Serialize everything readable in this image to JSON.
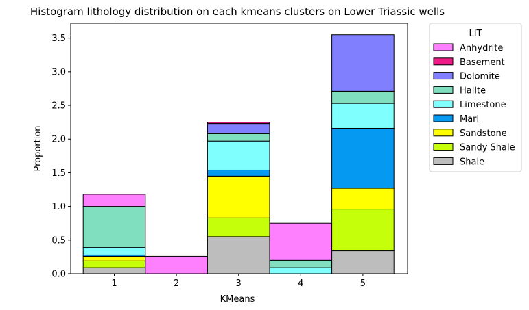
{
  "chart_data": {
    "type": "bar",
    "stacked": true,
    "title": "Histogram lithology distribution on each kmeans clusters on Lower Triassic wells",
    "xlabel": "KMeans",
    "ylabel": "Proportion",
    "ylim": [
      0,
      3.72
    ],
    "yticks": [
      0.0,
      0.5,
      1.0,
      1.5,
      2.0,
      2.5,
      3.0,
      3.5
    ],
    "ytick_labels": [
      "0.0",
      "0.5",
      "1.0",
      "1.5",
      "2.0",
      "2.5",
      "3.0",
      "3.5"
    ],
    "categories": [
      "1",
      "2",
      "3",
      "4",
      "5"
    ],
    "grid": false,
    "legend": {
      "title": "LIT",
      "placement": "outside-top-right"
    },
    "series": [
      {
        "name": "Shale",
        "color": "#bdbdbd",
        "values": [
          0.09,
          0,
          0.55,
          0,
          0.34
        ]
      },
      {
        "name": "Sandy Shale",
        "color": "#c5ff0a",
        "values": [
          0.1,
          0,
          0.28,
          0,
          0.62
        ]
      },
      {
        "name": "Sandstone",
        "color": "#ffff00",
        "values": [
          0.07,
          0,
          0.62,
          0,
          0.31
        ]
      },
      {
        "name": "Marl",
        "color": "#0699f2",
        "values": [
          0.02,
          0,
          0.09,
          0,
          0.89
        ]
      },
      {
        "name": "Limestone",
        "color": "#80ffff",
        "values": [
          0.11,
          0,
          0.43,
          0.09,
          0.37
        ]
      },
      {
        "name": "Halite",
        "color": "#7fdfbf",
        "values": [
          0.61,
          0,
          0.11,
          0.11,
          0.18
        ]
      },
      {
        "name": "Dolomite",
        "color": "#8080ff",
        "values": [
          0,
          0,
          0.15,
          0,
          0.84
        ]
      },
      {
        "name": "Basement",
        "color": "#ee1a85",
        "values": [
          0,
          0,
          0.02,
          0,
          0
        ]
      },
      {
        "name": "Anhydrite",
        "color": "#ff80ff",
        "values": [
          0.18,
          0.26,
          0,
          0.55,
          0
        ]
      }
    ],
    "legend_order": [
      "Anhydrite",
      "Basement",
      "Dolomite",
      "Halite",
      "Limestone",
      "Marl",
      "Sandstone",
      "Sandy Shale",
      "Shale"
    ]
  }
}
